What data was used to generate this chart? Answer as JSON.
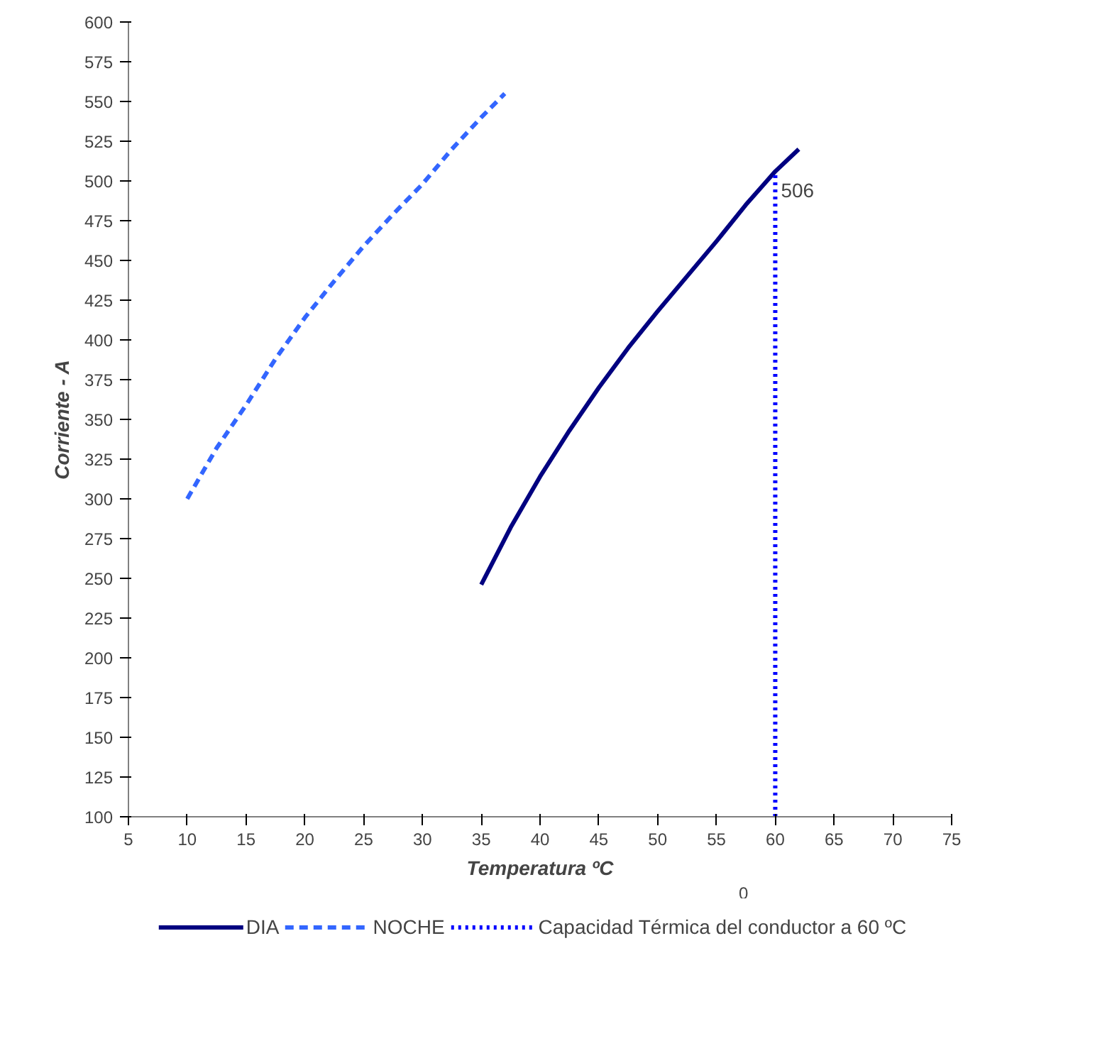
{
  "chart_data": {
    "type": "line",
    "xlabel": "Temperatura ºC",
    "ylabel": "Corriente - A",
    "xlim": [
      5,
      75
    ],
    "xticks": [
      5,
      10,
      15,
      20,
      25,
      30,
      35,
      40,
      45,
      50,
      55,
      60,
      65,
      70,
      75
    ],
    "ylim": [
      100,
      600
    ],
    "yticks": [
      100,
      125,
      150,
      175,
      200,
      225,
      250,
      275,
      300,
      325,
      350,
      375,
      400,
      425,
      450,
      475,
      500,
      525,
      550,
      575,
      600
    ],
    "grid": false,
    "legend": "bottom",
    "marker": "none",
    "series": [
      {
        "name": "DIA",
        "color": "#000080",
        "line_style": "solid",
        "x": [
          35,
          37.5,
          40,
          42.5,
          45,
          47.5,
          50,
          52.5,
          55,
          57.5,
          60,
          62
        ],
        "values": [
          246,
          282,
          314,
          343,
          370,
          395,
          418,
          440,
          462,
          485,
          506,
          520
        ]
      },
      {
        "name": "NOCHE",
        "color": "#3366ff",
        "line_style": "dashed",
        "x": [
          10,
          12.5,
          15,
          17.5,
          20,
          22.5,
          25,
          27.5,
          30,
          32.5,
          35,
          37
        ],
        "values": [
          300,
          332,
          359,
          388,
          414,
          437,
          459,
          479,
          498,
          520,
          540,
          555
        ]
      },
      {
        "name": "Capacidad Térmica del conductor a 60 ºC",
        "color": "#0000ff",
        "line_style": "dotted",
        "x": [
          60,
          60
        ],
        "values": [
          100,
          506
        ]
      }
    ],
    "annotations": [
      {
        "text": "506",
        "x": 60,
        "y": 506
      },
      "0"
    ]
  }
}
